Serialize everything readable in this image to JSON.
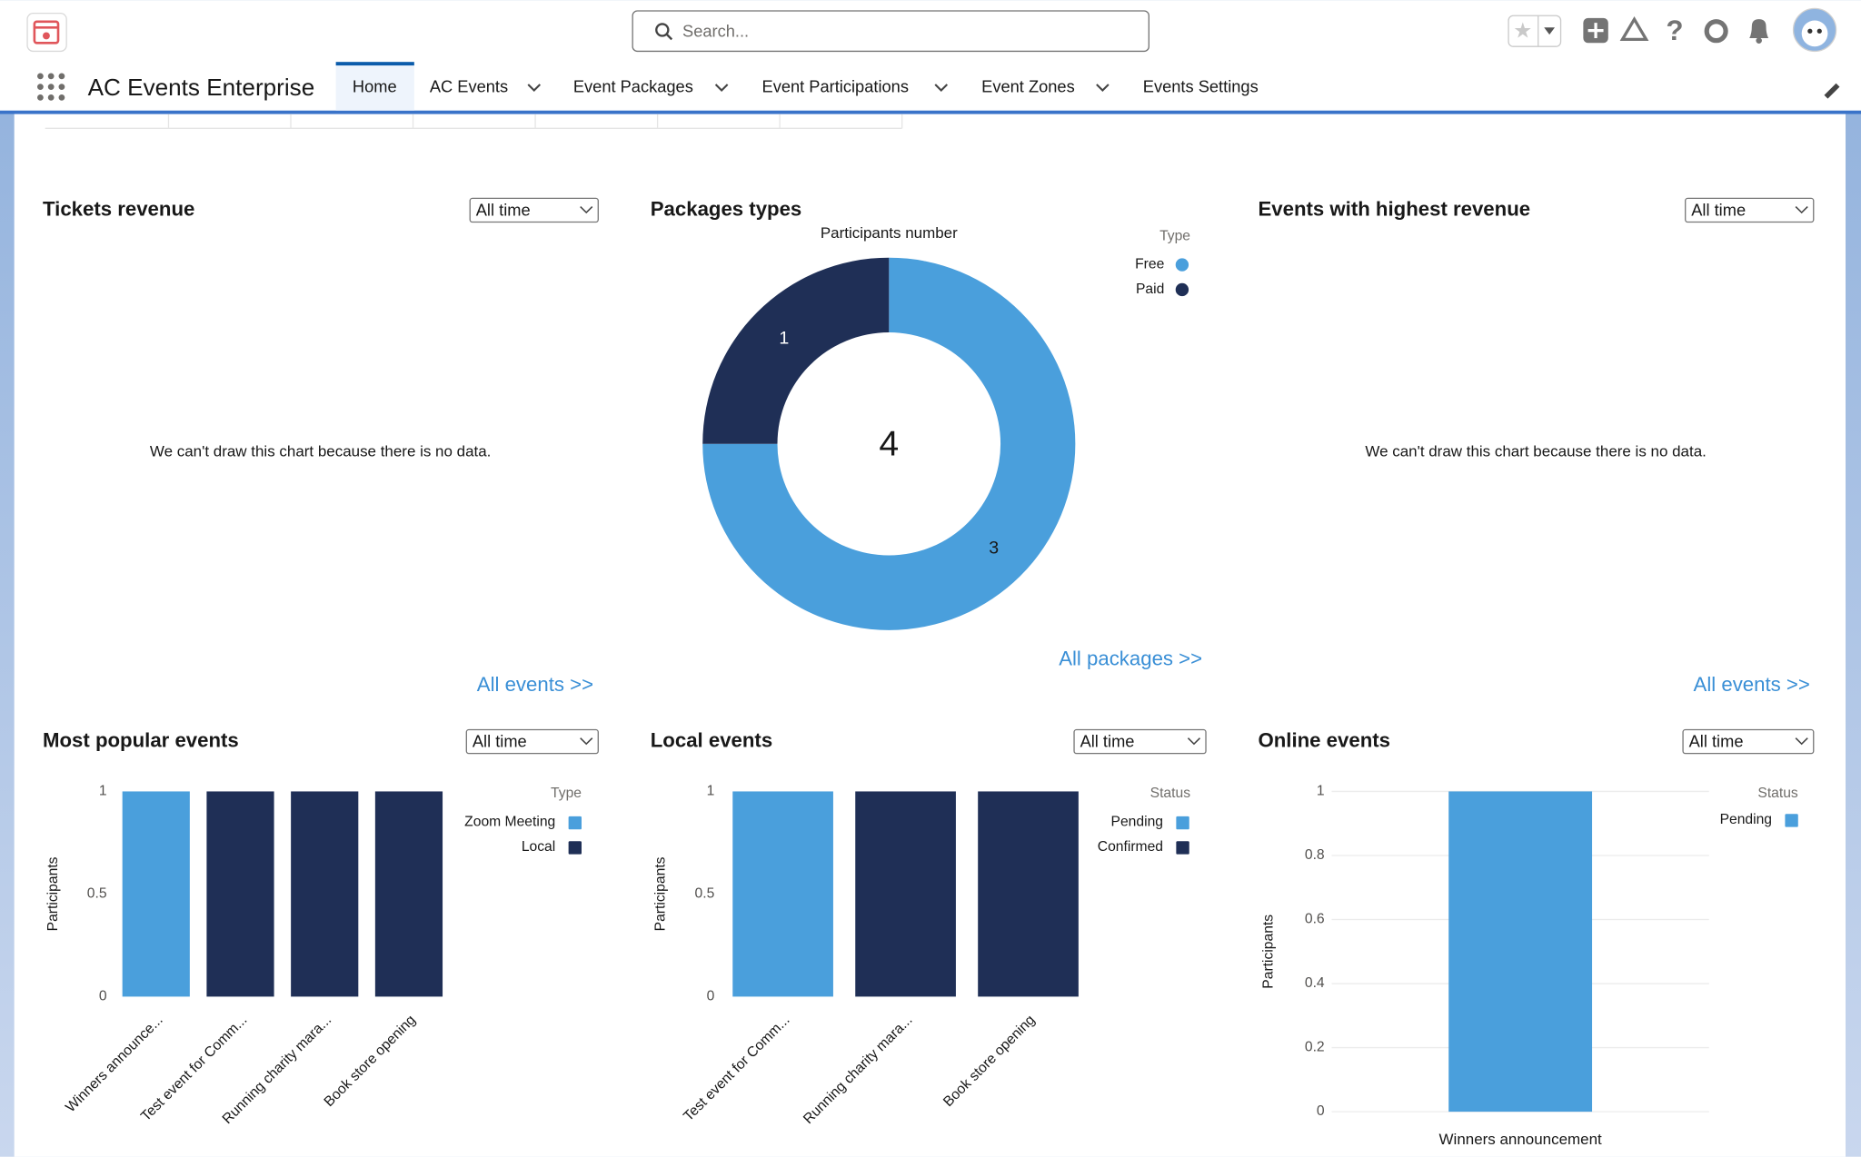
{
  "header": {
    "search_placeholder": "Search..."
  },
  "nav": {
    "app_name": "AC Events Enterprise",
    "tabs": [
      {
        "label": "Home",
        "menu": false,
        "active": true
      },
      {
        "label": "AC Events",
        "menu": true,
        "active": false
      },
      {
        "label": "Event Packages",
        "menu": true,
        "active": false
      },
      {
        "label": "Event Participations",
        "menu": true,
        "active": false
      },
      {
        "label": "Event Zones",
        "menu": true,
        "active": false
      },
      {
        "label": "Events Settings",
        "menu": false,
        "active": false
      }
    ]
  },
  "cards": [
    {
      "title": "Tickets revenue",
      "filter": "All time",
      "message": "We can't draw this chart because there is no data.",
      "link": "All events >>"
    },
    {
      "title": "Packages types",
      "link": "All packages >>",
      "chart": {
        "type": "donut",
        "subtitle": "Participants number",
        "legend_title": "Type",
        "categories": [
          "Free",
          "Paid"
        ],
        "values": [
          3,
          1
        ],
        "colors": [
          "#4a9fdc",
          "#1f2f56"
        ],
        "center_value": 4
      }
    },
    {
      "title": "Events with highest revenue",
      "filter": "All time",
      "message": "We can't draw this chart because there is no data.",
      "link": "All events >>"
    },
    {
      "title": "Most popular events",
      "filter": "All time",
      "chart": {
        "type": "bar",
        "y_label": "Participants",
        "legend_title": "Type",
        "label_rotation": -45,
        "categories": [
          "Winners announce...",
          "Test event for Comm...",
          "Running charity mara...",
          "Book store opening"
        ],
        "series": [
          {
            "name": "Zoom Meeting",
            "color": "#4a9fdc",
            "values": [
              1,
              null,
              null,
              null
            ]
          },
          {
            "name": "Local",
            "color": "#1f2f56",
            "values": [
              null,
              1,
              1,
              1
            ]
          }
        ],
        "ylim": [
          0,
          1
        ],
        "yticks": [
          0,
          0.5,
          1
        ],
        "grid": false
      }
    },
    {
      "title": "Local events",
      "filter": "All time",
      "chart": {
        "type": "bar",
        "y_label": "Participants",
        "legend_title": "Status",
        "label_rotation": -45,
        "categories": [
          "Test event for Comm...",
          "Running charity mara...",
          "Book store opening"
        ],
        "series": [
          {
            "name": "Pending",
            "color": "#4a9fdc",
            "values": [
              1,
              null,
              null
            ]
          },
          {
            "name": "Confirmed",
            "color": "#1f2f56",
            "values": [
              null,
              1,
              1
            ]
          }
        ],
        "ylim": [
          0,
          1
        ],
        "yticks": [
          0,
          0.5,
          1
        ],
        "grid": false
      }
    },
    {
      "title": "Online events",
      "filter": "All time",
      "chart": {
        "type": "bar",
        "y_label": "Participants",
        "legend_title": "Status",
        "label_rotation": 0,
        "categories": [
          "Winners announcement"
        ],
        "series": [
          {
            "name": "Pending",
            "color": "#4a9fdc",
            "values": [
              1
            ]
          }
        ],
        "ylim": [
          0,
          1
        ],
        "yticks": [
          0,
          0.2,
          0.4,
          0.6,
          0.8,
          1
        ],
        "grid": true
      }
    }
  ]
}
